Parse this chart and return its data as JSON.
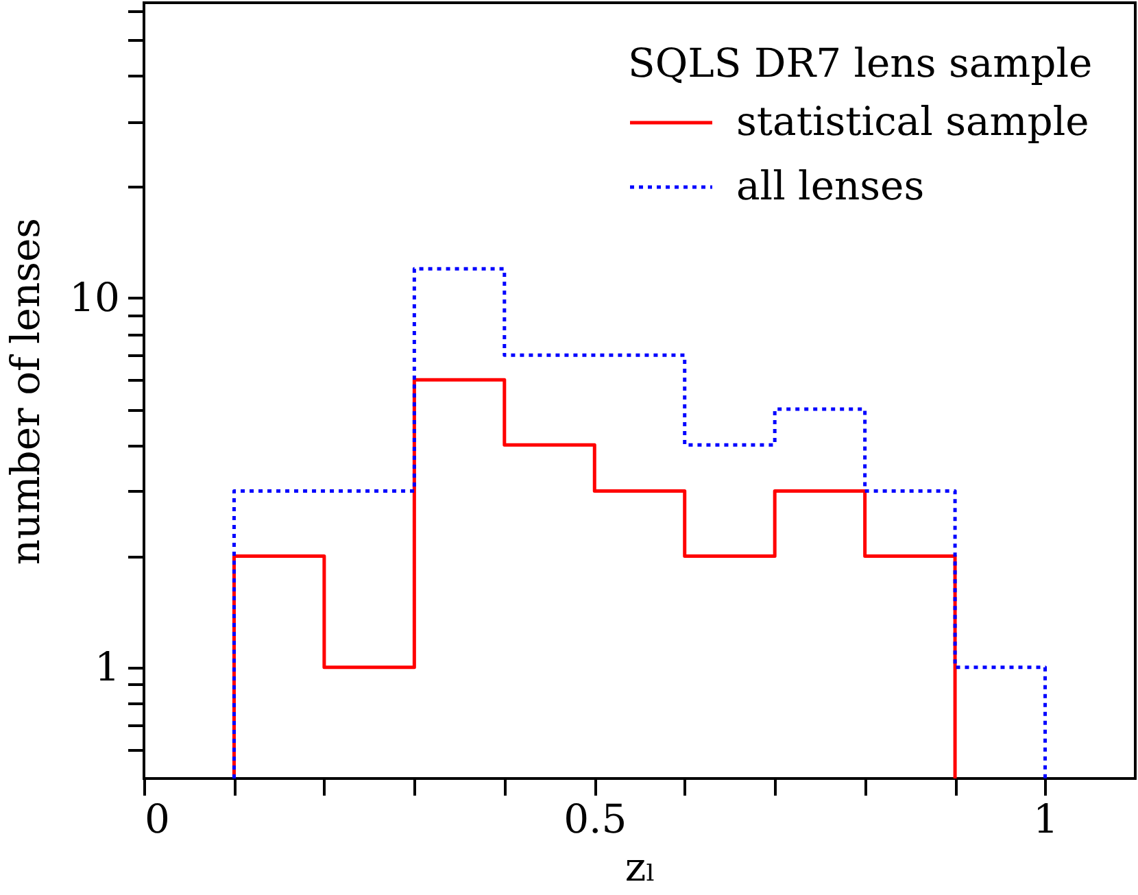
{
  "chart_data": {
    "type": "histogram",
    "xlabel": "zₗ",
    "ylabel": "number of lenses",
    "legend_title": "SQLS DR7 lens sample",
    "bins": [
      0.1,
      0.2,
      0.3,
      0.4,
      0.5,
      0.6,
      0.7,
      0.8,
      0.9,
      1.0
    ],
    "series": [
      {
        "name": "statistical sample",
        "color": "#ff0000",
        "line_style": "solid",
        "bins": [
          0.1,
          0.2,
          0.3,
          0.4,
          0.5,
          0.6,
          0.7,
          0.8,
          0.9
        ],
        "values": [
          2,
          1,
          6,
          4,
          3,
          2,
          3,
          2
        ]
      },
      {
        "name": "all lenses",
        "color": "#0000ff",
        "line_style": "dotted",
        "values": [
          3,
          3,
          12,
          7,
          7,
          4,
          5,
          3,
          1
        ]
      }
    ],
    "xlim": [
      0,
      1.1
    ],
    "ylim": [
      0.5,
      63
    ],
    "log": true,
    "legend": "top right",
    "xticks": [
      0,
      {
        "value": 0.1,
        "label": null
      },
      {
        "value": 0.2,
        "label": null
      },
      {
        "value": 0.3,
        "label": null
      },
      {
        "value": 0.4,
        "label": null
      },
      0.5,
      {
        "value": 0.6,
        "label": null
      },
      {
        "value": 0.7,
        "label": null
      },
      {
        "value": 0.8,
        "label": null
      },
      {
        "value": 0.9,
        "label": null
      },
      1
    ],
    "yticks": [
      {
        "value": 0.6,
        "label": null
      },
      {
        "value": 0.7,
        "label": null
      },
      {
        "value": 0.8,
        "label": null
      },
      {
        "value": 0.9,
        "label": null
      },
      1,
      {
        "value": 2,
        "label": null
      },
      {
        "value": 3,
        "label": null
      },
      {
        "value": 4,
        "label": null
      },
      {
        "value": 5,
        "label": null
      },
      {
        "value": 6,
        "label": null
      },
      {
        "value": 7,
        "label": null
      },
      {
        "value": 8,
        "label": null
      },
      {
        "value": 9,
        "label": null
      },
      10,
      {
        "value": 20,
        "label": null
      },
      {
        "value": 30,
        "label": null
      },
      {
        "value": 40,
        "label": null
      },
      {
        "value": 50,
        "label": null
      },
      {
        "value": 60,
        "label": null
      }
    ]
  }
}
